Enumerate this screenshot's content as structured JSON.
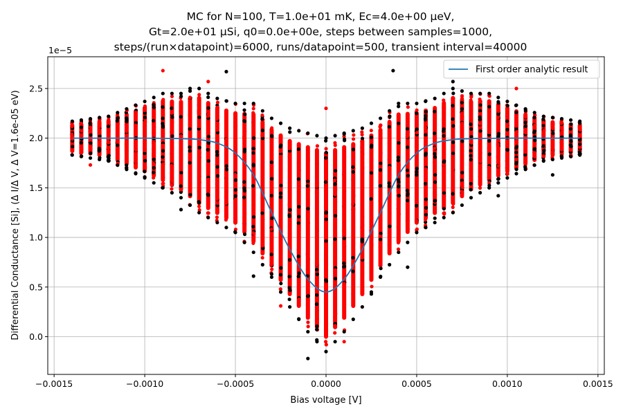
{
  "chart_data": {
    "type": "scatter",
    "title_lines": [
      "MC for N=100, T=1.0e+01 mK, Ec=4.0e+00 μeV,",
      "Gt=2.0e+01 μSi, q0=0.0e+00e, steps between samples=1000,",
      "steps/(run×datapoint)=6000, runs/datapoint=500, transient interval=40000"
    ],
    "xlabel": "Bias voltage [V]",
    "ylabel": "Differential Conductance [Si], (Δ I/Δ V, Δ V=1.6e-05 eV)",
    "y_offset_label": "1e−5",
    "xlim": [
      -0.001535,
      0.001535
    ],
    "ylim": [
      -0.38,
      2.82
    ],
    "y_scale": 1e-05,
    "x_ticks": [
      -0.0015,
      -0.001,
      -0.0005,
      0,
      0.0005,
      0.001,
      0.0015
    ],
    "x_tick_labels": [
      "−0.0015",
      "−0.0010",
      "−0.0005",
      "0.0000",
      "0.0005",
      "0.0010",
      "0.0015"
    ],
    "y_ticks": [
      0,
      0.5,
      1.0,
      1.5,
      2.0,
      2.5
    ],
    "y_tick_labels": [
      "0.0",
      "0.5",
      "1.0",
      "1.5",
      "2.0",
      "2.5"
    ],
    "grid": true,
    "legend": {
      "placement": "top-right",
      "entries": [
        "First order analytic result"
      ]
    },
    "colors": {
      "line": "#1f77b4",
      "scatter_primary": "#ff0000",
      "scatter_secondary": "#000000"
    },
    "analytic_series": {
      "name": "First order analytic result",
      "x": [
        -0.0014,
        -0.0012,
        -0.001,
        -0.0008,
        -0.0007,
        -0.0006,
        -0.0005,
        -0.0004,
        -0.0003,
        -0.0002,
        -0.0001,
        0,
        0.0001,
        0.0002,
        0.0003,
        0.0004,
        0.0005,
        0.0006,
        0.0007,
        0.0008,
        0.001,
        0.0012,
        0.0014
      ],
      "y": [
        2.0,
        2.0,
        2.0,
        1.995,
        1.985,
        1.95,
        1.85,
        1.63,
        1.25,
        0.88,
        0.58,
        0.45,
        0.58,
        0.88,
        1.25,
        1.63,
        1.85,
        1.95,
        1.985,
        1.995,
        2.0,
        2.0,
        2.0
      ]
    },
    "scatter_columns": {
      "x_start": -0.0014,
      "x_end": 0.0014,
      "x_step": 5e-05,
      "spread_y": [
        [
          -0.0014,
          1.83,
          2.17
        ],
        [
          -0.0012,
          1.77,
          2.22
        ],
        [
          -0.001,
          1.6,
          2.37
        ],
        [
          -0.0009,
          1.5,
          2.45
        ],
        [
          -0.0008,
          1.4,
          2.45
        ],
        [
          -0.0007,
          1.25,
          2.5
        ],
        [
          -0.0006,
          1.15,
          2.4
        ],
        [
          -0.0005,
          1.05,
          2.35
        ],
        [
          -0.0004,
          0.85,
          2.35
        ],
        [
          -0.0003,
          0.6,
          2.2
        ],
        [
          -0.0002,
          0.3,
          2.1
        ],
        [
          -0.0001,
          0.05,
          2.05
        ],
        [
          0,
          -0.15,
          2.0
        ],
        [
          0.0001,
          0.05,
          2.05
        ],
        [
          0.0002,
          0.3,
          2.1
        ],
        [
          0.0003,
          0.6,
          2.2
        ],
        [
          0.0004,
          0.85,
          2.35
        ],
        [
          0.0005,
          1.05,
          2.35
        ],
        [
          0.0006,
          1.15,
          2.4
        ],
        [
          0.0007,
          1.25,
          2.5
        ],
        [
          0.0008,
          1.4,
          2.45
        ],
        [
          0.0009,
          1.5,
          2.45
        ],
        [
          0.001,
          1.6,
          2.37
        ],
        [
          0.0012,
          1.77,
          2.22
        ],
        [
          0.0014,
          1.83,
          2.17
        ]
      ],
      "outliers": [
        [
          -0.0009,
          2.68
        ],
        [
          -0.00055,
          2.67
        ],
        [
          0.00037,
          2.68
        ],
        [
          -0.00065,
          2.57
        ],
        [
          -0.00075,
          2.5
        ],
        [
          0.0007,
          2.57
        ],
        [
          0.00105,
          2.5
        ],
        [
          -0.0004,
          0.61
        ],
        [
          0.00045,
          0.7
        ],
        [
          -0.00025,
          0.31
        ],
        [
          0.00025,
          0.43
        ],
        [
          -0.0001,
          -0.22
        ],
        [
          0.0001,
          -0.05
        ],
        [
          -0.0008,
          1.28
        ],
        [
          0.00125,
          1.63
        ],
        [
          -0.0013,
          1.73
        ],
        [
          0.0003,
          0.98
        ],
        [
          0.00095,
          1.42
        ],
        [
          0,
          2.3
        ]
      ]
    }
  }
}
